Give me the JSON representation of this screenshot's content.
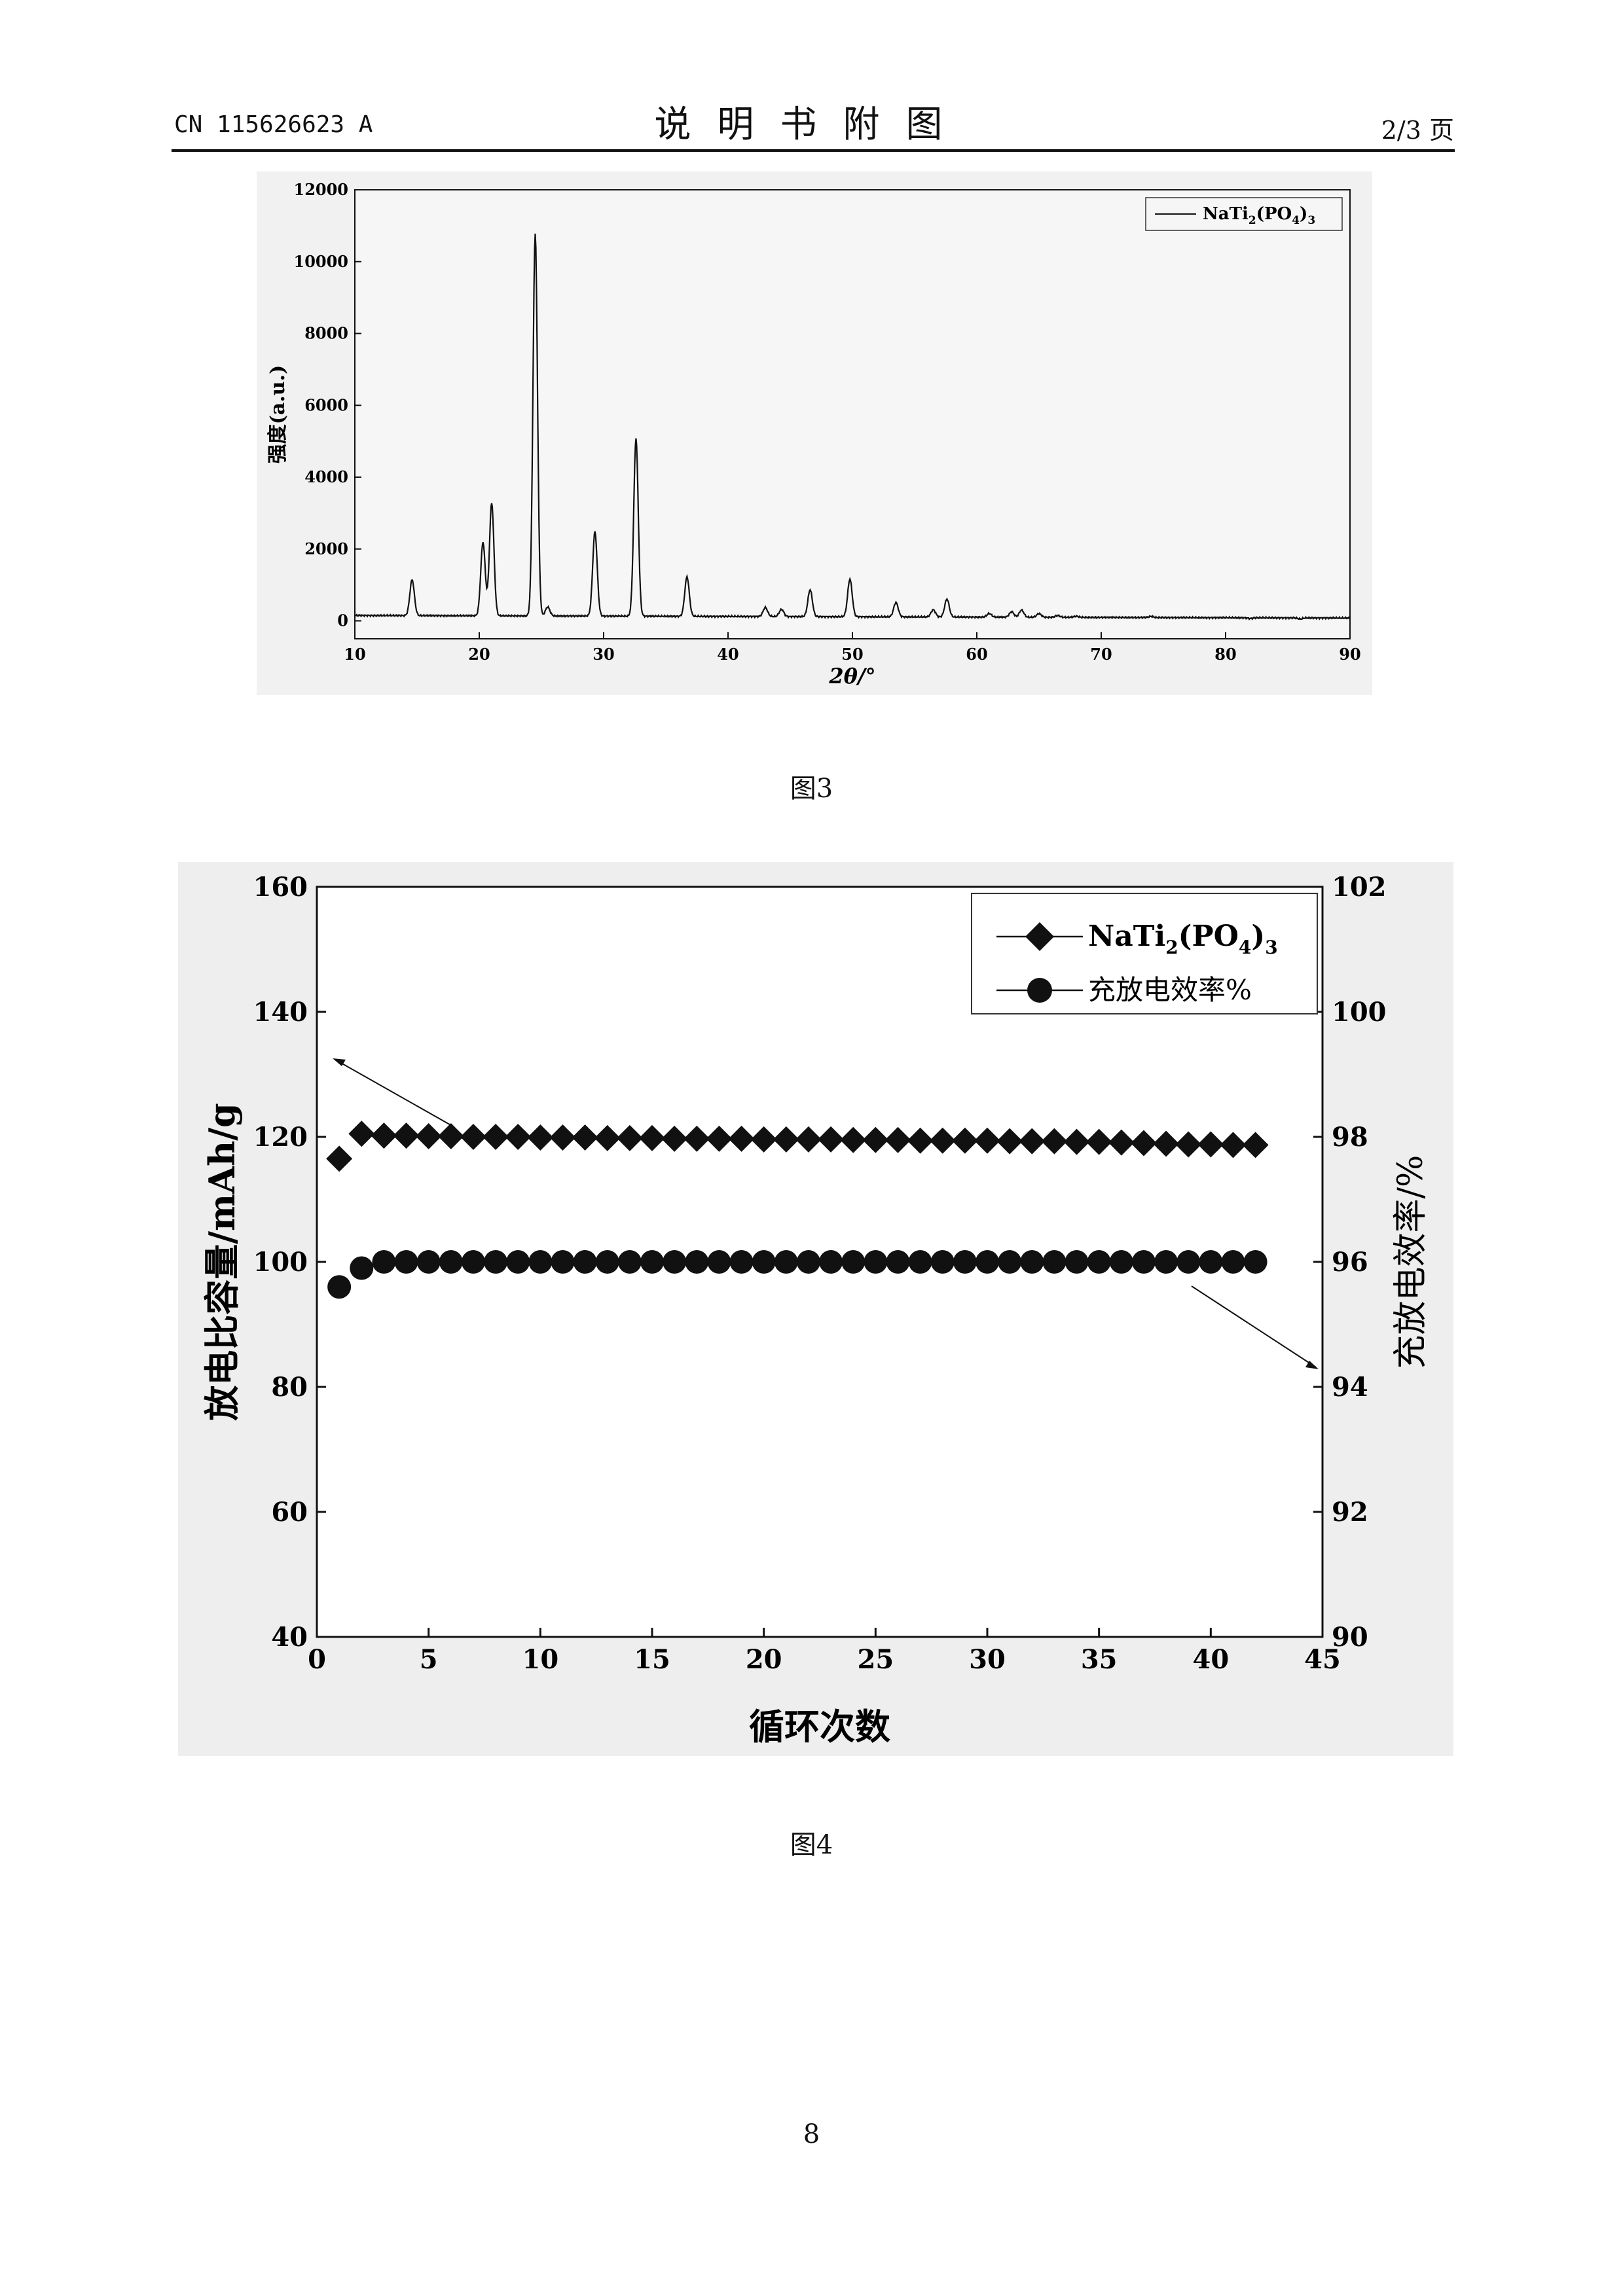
{
  "header": {
    "doc_id": "CN 115626623 A",
    "title": "说明书附图",
    "page": "2/3 页"
  },
  "figure3": {
    "caption": "图3",
    "chart_data": {
      "type": "line",
      "xlabel": "2θ/°",
      "ylabel": "强度(a.u.)",
      "xlim": [
        10,
        90
      ],
      "ylim": [
        -500,
        12000
      ],
      "xticks": [
        "10",
        "20",
        "30",
        "40",
        "50",
        "60",
        "70",
        "80",
        "90"
      ],
      "yticks": [
        "0",
        "2000",
        "4000",
        "6000",
        "8000",
        "10000",
        "12000"
      ],
      "legend": {
        "placement": "top-right",
        "series_label": "NaTi",
        "sub1": "2",
        "mid": "(PO",
        "sub2": "4",
        "end": ")",
        "sub3": "3"
      },
      "series": [
        {
          "name": "NaTi2(PO4)3",
          "baseline": 150,
          "peaks": [
            [
              14.6,
              1150
            ],
            [
              20.3,
              2200
            ],
            [
              21.0,
              3300
            ],
            [
              24.5,
              10800
            ],
            [
              25.5,
              400
            ],
            [
              29.3,
              2500
            ],
            [
              32.6,
              5100
            ],
            [
              36.7,
              1250
            ],
            [
              43.0,
              400
            ],
            [
              44.3,
              350
            ],
            [
              46.6,
              900
            ],
            [
              49.8,
              1200
            ],
            [
              53.5,
              550
            ],
            [
              56.5,
              350
            ],
            [
              57.6,
              650
            ],
            [
              61.0,
              250
            ],
            [
              62.8,
              300
            ],
            [
              63.6,
              350
            ],
            [
              65.0,
              250
            ],
            [
              66.5,
              200
            ],
            [
              68.0,
              180
            ],
            [
              71.0,
              150
            ],
            [
              74.0,
              180
            ],
            [
              78.0,
              150
            ],
            [
              82.0,
              130
            ],
            [
              86.0,
              120
            ]
          ]
        }
      ]
    }
  },
  "figure4": {
    "caption": "图4",
    "chart_data": {
      "type": "scatter",
      "xlabel": "循环次数",
      "ylabel_left": "放电比容量/mAh/g",
      "ylabel_right": "充放电效率/%",
      "xlim": [
        0,
        45
      ],
      "ylim_left": [
        40,
        160
      ],
      "ylim_right": [
        90,
        102
      ],
      "xticks": [
        "0",
        "5",
        "10",
        "15",
        "20",
        "25",
        "30",
        "35",
        "40",
        "45"
      ],
      "yticks_left": [
        "40",
        "60",
        "80",
        "100",
        "120",
        "140",
        "160"
      ],
      "yticks_right": [
        "90",
        "92",
        "94",
        "96",
        "98",
        "100",
        "102"
      ],
      "legend": {
        "placement": "top-right",
        "capacity_label": "NaTi",
        "capacity_sub1": "2",
        "capacity_mid": "(PO",
        "capacity_sub2": "4",
        "capacity_end": ")",
        "capacity_sub3": "3",
        "efficiency_label": "充放电效率%"
      },
      "series": [
        {
          "name": "NaTi2(PO4)3",
          "axis": "left",
          "marker": "diamond",
          "x": [
            1,
            2,
            3,
            4,
            5,
            6,
            7,
            8,
            9,
            10,
            11,
            12,
            13,
            14,
            15,
            16,
            17,
            18,
            19,
            20,
            21,
            22,
            23,
            24,
            25,
            26,
            27,
            28,
            29,
            30,
            31,
            32,
            33,
            34,
            35,
            36,
            37,
            38,
            39,
            40,
            41,
            42
          ],
          "y": [
            116.5,
            120.5,
            120.2,
            120.2,
            120.1,
            120.1,
            120.0,
            120.0,
            120.0,
            119.9,
            119.9,
            119.9,
            119.8,
            119.8,
            119.8,
            119.7,
            119.7,
            119.7,
            119.7,
            119.6,
            119.6,
            119.6,
            119.6,
            119.5,
            119.5,
            119.5,
            119.4,
            119.4,
            119.4,
            119.4,
            119.3,
            119.3,
            119.3,
            119.2,
            119.2,
            119.1,
            119.0,
            118.9,
            118.8,
            118.8,
            118.7,
            118.7
          ]
        },
        {
          "name": "充放电效率%",
          "axis": "right",
          "marker": "circle",
          "x": [
            1,
            2,
            3,
            4,
            5,
            6,
            7,
            8,
            9,
            10,
            11,
            12,
            13,
            14,
            15,
            16,
            17,
            18,
            19,
            20,
            21,
            22,
            23,
            24,
            25,
            26,
            27,
            28,
            29,
            30,
            31,
            32,
            33,
            34,
            35,
            36,
            37,
            38,
            39,
            40,
            41,
            42
          ],
          "y": [
            95.6,
            95.9,
            96.0,
            96.0,
            96.0,
            96.0,
            96.0,
            96.0,
            96.0,
            96.0,
            96.0,
            96.0,
            96.0,
            96.0,
            96.0,
            96.0,
            96.0,
            96.0,
            96.0,
            96.0,
            96.0,
            96.0,
            96.0,
            96.0,
            96.0,
            96.0,
            96.0,
            96.0,
            96.0,
            96.0,
            96.0,
            96.0,
            96.0,
            96.0,
            96.0,
            96.0,
            96.0,
            96.0,
            96.0,
            96.0,
            96.0,
            96.0
          ]
        }
      ]
    }
  },
  "page_number": "8"
}
